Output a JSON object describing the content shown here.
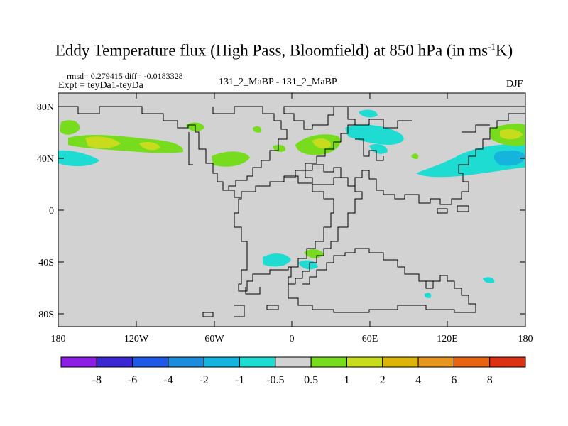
{
  "header": {
    "title_main": "Eddy Temperature flux (High Pass, Bloomfield) at 850 hPa (in ms",
    "title_sup": "-1",
    "title_end": "K)",
    "stats": "rmsd= 0.279415  diff= -0.0183328",
    "expt": "Expt = teyDa1-teyDa",
    "runs": "131_2_MaBP - 131_2_MaBP",
    "season": "DJF"
  },
  "axes": {
    "y_labels": [
      "80N",
      "40N",
      "0",
      "40S",
      "80S"
    ],
    "x_labels": [
      "180",
      "120W",
      "60W",
      "0",
      "60E",
      "120E",
      "180"
    ]
  },
  "colorbar": {
    "colors": [
      "#8c1ee6",
      "#3c28d2",
      "#1e5ae6",
      "#1e8cdc",
      "#14b4dc",
      "#1edcd2",
      "#d2d2d2",
      "#78dc1e",
      "#c8dc1e",
      "#dcb40a",
      "#e6961e",
      "#e66414",
      "#dc3214"
    ],
    "labels": [
      "-8",
      "-6",
      "-4",
      "-2",
      "-1",
      "-0.5",
      "0.5",
      "1",
      "2",
      "4",
      "6",
      "8"
    ]
  },
  "colors": {
    "land_background": "#d2d2d2",
    "coast": "#000000"
  }
}
